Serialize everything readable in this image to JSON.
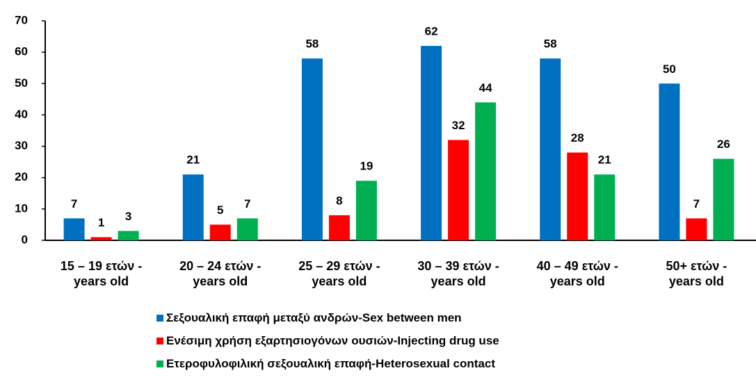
{
  "chart_data": {
    "type": "bar",
    "categories": [
      "15 – 19 ετών -\nyears old",
      "20 – 24 ετών -\nyears old",
      "25 – 29 ετών -\nyears old",
      "30 – 39 ετών -\nyears old",
      "40 – 49 ετών -\nyears old",
      "50+ ετών -\nyears old"
    ],
    "series": [
      {
        "name": "Σεξουαλική επαφή μεταξύ ανδρών-Sex between men",
        "color": "#0070c0",
        "values": [
          7,
          21,
          58,
          62,
          58,
          50
        ]
      },
      {
        "name": "Ενέσιμη χρήση εξαρτησιογόνων ουσιών-Injecting drug use",
        "color": "#ff0000",
        "values": [
          1,
          5,
          8,
          32,
          28,
          7
        ]
      },
      {
        "name": "Ετεροφυλοφιλική σεξουαλική επαφή-Heterosexual contact",
        "color": "#00b050",
        "values": [
          3,
          7,
          19,
          44,
          21,
          26
        ]
      }
    ],
    "ylim": [
      0,
      70
    ],
    "yticks": [
      0,
      10,
      20,
      30,
      40,
      50,
      60,
      70
    ],
    "grid": false,
    "legend": "bottom"
  }
}
